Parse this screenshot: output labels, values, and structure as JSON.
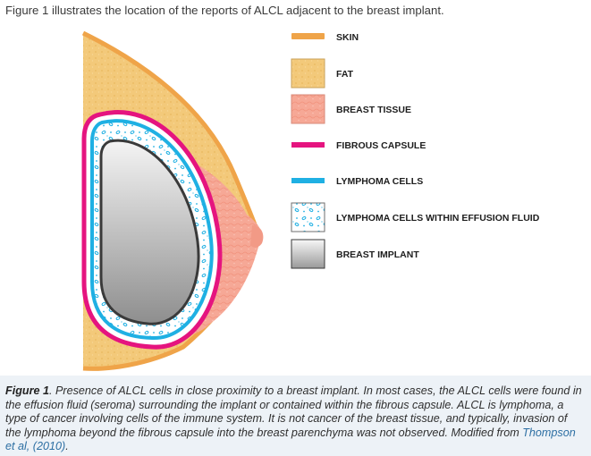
{
  "intro": "Figure 1 illustrates the location of the reports of ALCL adjacent to the breast implant.",
  "colors": {
    "skin": "#EFA449",
    "fat": "#F3C97A",
    "breast_tissue": "#F6A896",
    "fibrous_capsule": "#E5147F",
    "lymphoma_cells": "#1FB0E3",
    "effusion_fill": "#FFFFFF",
    "implant_light": "#F4F4F4",
    "implant_dark": "#8E8E8E",
    "caption_bg": "#EDF2F7",
    "link": "#2D6FA3"
  },
  "legend": [
    {
      "key": "skin",
      "label": "SKIN",
      "icon": "skin-line-swatch"
    },
    {
      "key": "fat",
      "label": "FAT",
      "icon": "fat-swatch"
    },
    {
      "key": "breast_tissue",
      "label": "BREAST TISSUE",
      "icon": "breast-tissue-swatch"
    },
    {
      "key": "fibrous_capsule",
      "label": "FIBROUS CAPSULE",
      "icon": "capsule-line-swatch"
    },
    {
      "key": "lymphoma_cells",
      "label": "LYMPHOMA CELLS",
      "icon": "lymphoma-line-swatch"
    },
    {
      "key": "effusion",
      "label": "LYMPHOMA CELLS WITHIN EFFUSION FLUID",
      "icon": "effusion-swatch"
    },
    {
      "key": "implant",
      "label": "BREAST IMPLANT",
      "icon": "implant-swatch"
    }
  ],
  "caption": {
    "figure_label": "Figure 1",
    "text": ". Presence of ALCL cells in close proximity to a breast implant. In most cases, the ALCL cells were found in the effusion fluid (seroma) surrounding the implant or contained within the fibrous capsule. ALCL is lymphoma, a type of cancer involving cells of the immune system. It is not cancer of the breast tissue, and typically, invasion of the lymphoma beyond the fibrous capsule into the breast parenchyma was not observed. Modified from ",
    "link_text": "Thompson et al, (2010)",
    "after_link": "."
  }
}
